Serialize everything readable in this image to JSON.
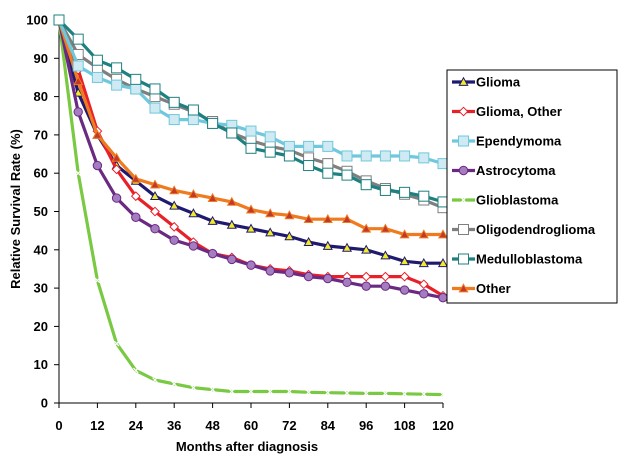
{
  "chart_data": {
    "type": "line",
    "title": "",
    "xlabel": "Months after diagnosis",
    "ylabel": "Relative Survival Rate (%)",
    "xlim": [
      0,
      120
    ],
    "ylim": [
      0,
      100
    ],
    "x_ticks": [
      "0",
      "12",
      "24",
      "36",
      "48",
      "60",
      "72",
      "84",
      "96",
      "108",
      "120"
    ],
    "y_ticks": [
      "0",
      "10",
      "20",
      "30",
      "40",
      "50",
      "60",
      "70",
      "80",
      "90",
      "100"
    ],
    "grid": false,
    "legend_position": "right",
    "x": [
      0,
      6,
      12,
      18,
      24,
      30,
      36,
      42,
      48,
      54,
      60,
      66,
      72,
      78,
      84,
      90,
      96,
      102,
      108,
      114,
      120
    ],
    "series": [
      {
        "name": "Glioma",
        "color": "#1f1a6e",
        "marker": "triangle",
        "marker_fill": "#f2ea2a",
        "values": [
          100,
          81,
          70,
          62,
          58,
          54,
          51.5,
          49.5,
          47.5,
          46.5,
          45.5,
          44.5,
          43.5,
          42,
          41,
          40.5,
          40,
          38.5,
          37,
          36.5,
          36.5
        ]
      },
      {
        "name": "Glioma, Other",
        "color": "#e8202a",
        "marker": "diamond",
        "marker_fill": "#ffffff",
        "values": [
          100,
          87,
          71,
          61,
          54,
          50,
          46,
          42,
          39,
          38,
          36,
          35,
          34.5,
          33.5,
          33,
          33,
          33,
          33,
          33,
          31,
          28
        ]
      },
      {
        "name": "Ependymoma",
        "color": "#6fc8dc",
        "marker": "square",
        "marker_fill": "#cfeaf2",
        "values": [
          100,
          88,
          85,
          83,
          82,
          77,
          74,
          74,
          73,
          72.5,
          71,
          69.5,
          67,
          67,
          67,
          64.5,
          64.5,
          64.5,
          64.5,
          64,
          62.5
        ]
      },
      {
        "name": "Astrocytoma",
        "color": "#6a2a82",
        "marker": "circle",
        "marker_fill": "#a57cc0",
        "values": [
          100,
          76,
          62,
          53.5,
          48.5,
          45.5,
          42.5,
          41,
          39,
          37.5,
          36,
          34.5,
          34,
          33,
          32.5,
          31.5,
          30.5,
          30.5,
          29.5,
          28.5,
          27.5
        ]
      },
      {
        "name": "Glioblastoma",
        "color": "#7ac943",
        "marker": "x",
        "marker_fill": "#ffffff",
        "values": [
          100,
          60,
          32,
          15.5,
          8.5,
          6,
          5,
          4,
          3.5,
          3,
          3,
          3,
          3,
          2.8,
          2.7,
          2.6,
          2.5,
          2.5,
          2.4,
          2.3,
          2.2
        ]
      },
      {
        "name": "Oligodendroglioma",
        "color": "#7f7f7f",
        "marker": "square",
        "marker_fill": "#ffffff",
        "values": [
          100,
          91,
          87.5,
          84.5,
          82,
          80,
          78,
          76,
          73.5,
          70.5,
          68.5,
          67,
          66,
          64,
          62.5,
          60.5,
          58,
          56,
          54.5,
          53,
          51
        ]
      },
      {
        "name": "Medulloblastoma",
        "color": "#1e8080",
        "marker": "square",
        "marker_fill": "#ffffff",
        "values": [
          100,
          95,
          89.5,
          87.5,
          84.5,
          82,
          78.5,
          76.5,
          73,
          70.5,
          66.5,
          65.5,
          64.5,
          62,
          60,
          59.5,
          57,
          55.5,
          55,
          54,
          52.5
        ]
      },
      {
        "name": "Other",
        "color": "#f07a1e",
        "marker": "triangle",
        "marker_fill": "#c0392b",
        "values": [
          100,
          84,
          70,
          64,
          58.5,
          57,
          55.5,
          54.5,
          53.5,
          52.5,
          50.5,
          49.5,
          49,
          48,
          48,
          48,
          45.5,
          45.5,
          44,
          44,
          44
        ]
      }
    ]
  }
}
